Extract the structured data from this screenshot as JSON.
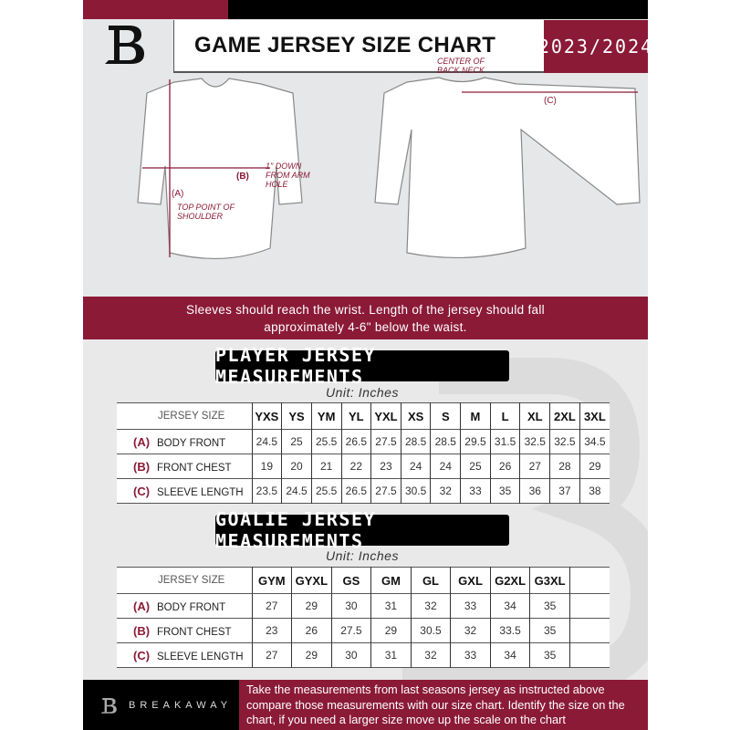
{
  "header": {
    "title": "GAME JERSEY SIZE CHART",
    "season": "2023/2024"
  },
  "diagram": {
    "label_a": "(A)",
    "label_a_note": "TOP POINT OF SHOULDER",
    "label_b": "(B)",
    "label_b_note": "1\" DOWN FROM ARM HOLE",
    "label_c": "(C)",
    "label_c_note": "CENTER OF BACK NECK"
  },
  "band_text_1": "Sleeves should reach the wrist. Length of the jersey should fall",
  "band_text_2": "approximately 4-6\" below the waist.",
  "player": {
    "title": "PLAYER JERSEY MEASUREMENTS",
    "unit": "Unit: Inches",
    "header_label": "JERSEY SIZE",
    "sizes": [
      "YXS",
      "YS",
      "YM",
      "YL",
      "YXL",
      "XS",
      "S",
      "M",
      "L",
      "XL",
      "2XL",
      "3XL"
    ],
    "rows": [
      {
        "letter": "(A)",
        "name": "BODY FRONT",
        "values": [
          "24.5",
          "25",
          "25.5",
          "26.5",
          "27.5",
          "28.5",
          "28.5",
          "29.5",
          "31.5",
          "32.5",
          "32.5",
          "34.5"
        ]
      },
      {
        "letter": "(B)",
        "name": "FRONT CHEST",
        "values": [
          "19",
          "20",
          "21",
          "22",
          "23",
          "24",
          "24",
          "25",
          "26",
          "27",
          "28",
          "29"
        ]
      },
      {
        "letter": "(C)",
        "name": "SLEEVE LENGTH",
        "values": [
          "23.5",
          "24.5",
          "25.5",
          "26.5",
          "27.5",
          "30.5",
          "32",
          "33",
          "35",
          "36",
          "37",
          "38"
        ]
      }
    ]
  },
  "goalie": {
    "title": "GOALIE JERSEY MEASUREMENTS",
    "unit": "Unit: Inches",
    "header_label": "JERSEY SIZE",
    "sizes": [
      "GYM",
      "GYXL",
      "GS",
      "GM",
      "GL",
      "GXL",
      "G2XL",
      "G3XL",
      ""
    ],
    "rows": [
      {
        "letter": "(A)",
        "name": "BODY FRONT",
        "values": [
          "27",
          "29",
          "30",
          "31",
          "32",
          "33",
          "34",
          "35",
          ""
        ]
      },
      {
        "letter": "(B)",
        "name": "FRONT CHEST",
        "values": [
          "23",
          "26",
          "27.5",
          "29",
          "30.5",
          "32",
          "33.5",
          "35",
          ""
        ]
      },
      {
        "letter": "(C)",
        "name": "SLEEVE LENGTH",
        "values": [
          "27",
          "29",
          "30",
          "31",
          "32",
          "33",
          "34",
          "35",
          ""
        ]
      }
    ]
  },
  "footer": {
    "brand": "BREAKAWAY",
    "text": "Take the measurements from last seasons jersey as instructed above compare those measurements  with our size chart. Identify the size on the chart, if you need a larger size move up the scale on the chart"
  },
  "colors": {
    "accent": "#8b1a37",
    "dark": "#000000",
    "background": "#e6e7e8"
  }
}
